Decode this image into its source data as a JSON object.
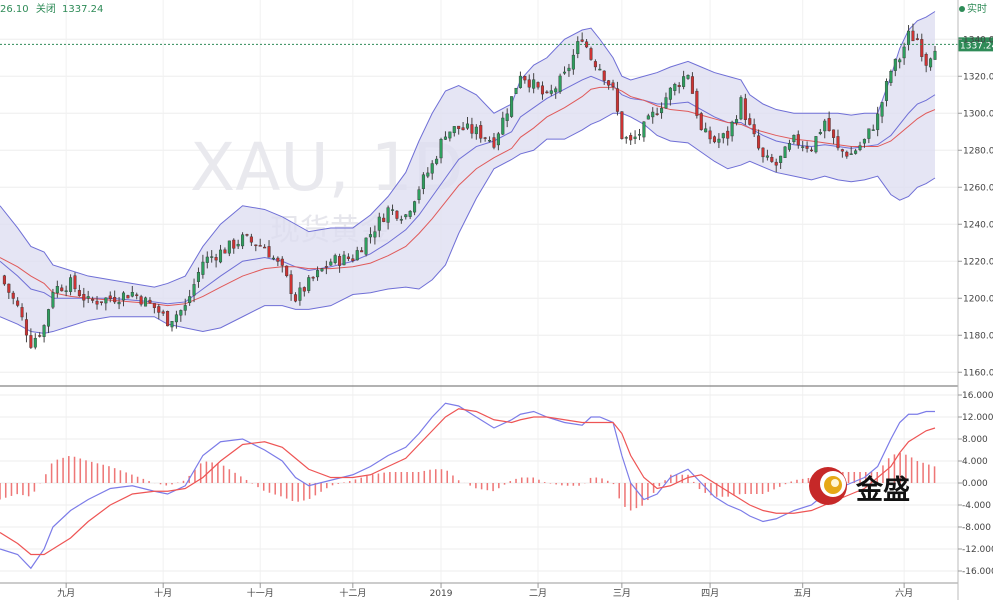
{
  "header": {
    "partial_value": "26.10",
    "close_label": "关闭",
    "close_value": "1337.24",
    "live_label": "实时"
  },
  "watermark": {
    "symbol": "XAU, 1D",
    "sub": "现货黄金"
  },
  "logo": {
    "text": "金盛"
  },
  "colors": {
    "up": "#2e9e5e",
    "down": "#cc3333",
    "band_fill": "#dcdcf0",
    "band_line": "#6f6fd6",
    "ma": "#e05a5a",
    "macd": "#7c7ce8",
    "signal": "#ee5555",
    "hist": "#ee7777",
    "last_price": "#2e8b57"
  },
  "chart_data": [
    {
      "type": "candlestick",
      "title": "",
      "symbol": "XAU",
      "timeframe": "1D",
      "last_price": 1337.24,
      "ylim": [
        1150,
        1350
      ],
      "y_ticks": [
        1160,
        1180,
        1200,
        1220,
        1240,
        1260,
        1280,
        1300,
        1320,
        1340
      ],
      "y_tick_labels": [
        "1160.00",
        "1180.00",
        "1200.00",
        "1220.00",
        "1240.00",
        "1260.00",
        "1280.00",
        "1300.00",
        "1320.00",
        "1340.00"
      ],
      "x_ticks": [
        {
          "label": "九月",
          "x": 15
        },
        {
          "label": "十月",
          "x": 37
        },
        {
          "label": "十一月",
          "x": 59
        },
        {
          "label": "十二月",
          "x": 80
        },
        {
          "label": "2019",
          "x": 100
        },
        {
          "label": "二月",
          "x": 122
        },
        {
          "label": "三月",
          "x": 141
        },
        {
          "label": "四月",
          "x": 161
        },
        {
          "label": "五月",
          "x": 182
        },
        {
          "label": "六月",
          "x": 205
        }
      ],
      "indicators": [
        "Bollinger Bands (upper, middle, lower)",
        "Moving average"
      ],
      "x": [
        0,
        4,
        7,
        10,
        12,
        16,
        20,
        25,
        30,
        35,
        38,
        42,
        46,
        50,
        55,
        60,
        64,
        67,
        70,
        75,
        80,
        84,
        88,
        92,
        95,
        98,
        101,
        104,
        108,
        112,
        116,
        118,
        121,
        124,
        128,
        132,
        134,
        136,
        139,
        141,
        143,
        146,
        149,
        152,
        156,
        159,
        162,
        165,
        168,
        170,
        173,
        176,
        180,
        184,
        187,
        190,
        193,
        196,
        199,
        202,
        204,
        206,
        208,
        210,
        212
      ],
      "close": [
        1212,
        1195,
        1176,
        1185,
        1205,
        1208,
        1198,
        1200,
        1203,
        1195,
        1188,
        1195,
        1220,
        1225,
        1232,
        1228,
        1215,
        1200,
        1208,
        1220,
        1222,
        1235,
        1248,
        1245,
        1260,
        1272,
        1290,
        1292,
        1290,
        1285,
        1308,
        1322,
        1315,
        1308,
        1320,
        1342,
        1330,
        1325,
        1312,
        1288,
        1284,
        1292,
        1302,
        1312,
        1322,
        1290,
        1285,
        1288,
        1306,
        1292,
        1275,
        1272,
        1285,
        1282,
        1296,
        1280,
        1278,
        1285,
        1298,
        1323,
        1330,
        1342,
        1340,
        1328,
        1337
      ],
      "bollinger_upper": [
        1250,
        1238,
        1228,
        1225,
        1218,
        1215,
        1212,
        1210,
        1208,
        1206,
        1208,
        1212,
        1228,
        1240,
        1250,
        1248,
        1244,
        1240,
        1236,
        1238,
        1238,
        1245,
        1255,
        1268,
        1285,
        1300,
        1312,
        1315,
        1310,
        1300,
        1305,
        1318,
        1326,
        1330,
        1340,
        1345,
        1346,
        1340,
        1330,
        1320,
        1318,
        1320,
        1322,
        1325,
        1328,
        1325,
        1322,
        1320,
        1318,
        1310,
        1305,
        1302,
        1300,
        1300,
        1300,
        1300,
        1299,
        1300,
        1300,
        1320,
        1335,
        1345,
        1350,
        1352,
        1355
      ],
      "bollinger_middle": [
        1220,
        1212,
        1205,
        1203,
        1200,
        1200,
        1200,
        1200,
        1199,
        1198,
        1197,
        1198,
        1205,
        1212,
        1220,
        1222,
        1220,
        1217,
        1215,
        1217,
        1220,
        1224,
        1230,
        1237,
        1245,
        1255,
        1265,
        1275,
        1282,
        1285,
        1290,
        1298,
        1303,
        1308,
        1313,
        1318,
        1320,
        1318,
        1315,
        1310,
        1308,
        1307,
        1305,
        1305,
        1306,
        1302,
        1298,
        1295,
        1295,
        1292,
        1288,
        1285,
        1283,
        1282,
        1283,
        1282,
        1281,
        1282,
        1283,
        1288,
        1294,
        1300,
        1305,
        1307,
        1310
      ],
      "bollinger_lower": [
        1190,
        1186,
        1182,
        1181,
        1182,
        1185,
        1188,
        1190,
        1190,
        1190,
        1186,
        1184,
        1182,
        1184,
        1190,
        1196,
        1196,
        1194,
        1194,
        1196,
        1202,
        1203,
        1205,
        1206,
        1205,
        1210,
        1218,
        1235,
        1254,
        1270,
        1275,
        1278,
        1280,
        1286,
        1286,
        1291,
        1294,
        1296,
        1300,
        1300,
        1298,
        1294,
        1288,
        1285,
        1284,
        1279,
        1274,
        1270,
        1272,
        1274,
        1271,
        1268,
        1266,
        1264,
        1266,
        1264,
        1263,
        1264,
        1266,
        1256,
        1253,
        1255,
        1260,
        1262,
        1265
      ],
      "ma": [
        1222,
        1217,
        1212,
        1208,
        1203,
        1201,
        1200,
        1199,
        1198,
        1197,
        1196,
        1197,
        1201,
        1206,
        1212,
        1216,
        1217,
        1217,
        1216,
        1216,
        1217,
        1219,
        1223,
        1228,
        1235,
        1243,
        1252,
        1261,
        1270,
        1276,
        1281,
        1287,
        1292,
        1298,
        1303,
        1309,
        1313,
        1314,
        1314,
        1312,
        1309,
        1307,
        1304,
        1302,
        1301,
        1299,
        1297,
        1295,
        1294,
        1292,
        1290,
        1288,
        1286,
        1285,
        1284,
        1283,
        1282,
        1282,
        1282,
        1285,
        1289,
        1293,
        1297,
        1300,
        1302
      ]
    },
    {
      "type": "line",
      "title": "",
      "indicator": "MACD",
      "ylim": [
        -17,
        17
      ],
      "y_ticks": [
        -16,
        -12,
        -8,
        -4,
        0,
        4,
        8,
        12,
        16
      ],
      "y_tick_labels": [
        "-16.000",
        "-12.000",
        "-8.000",
        "-4.000",
        "0.000",
        "4.000",
        "8.000",
        "12.000",
        "16.000"
      ],
      "x": [
        0,
        4,
        7,
        10,
        12,
        16,
        20,
        25,
        30,
        35,
        38,
        42,
        46,
        50,
        55,
        60,
        64,
        67,
        70,
        75,
        80,
        84,
        88,
        92,
        95,
        98,
        101,
        104,
        108,
        112,
        116,
        118,
        121,
        124,
        128,
        132,
        134,
        136,
        139,
        141,
        143,
        146,
        149,
        152,
        156,
        159,
        162,
        165,
        168,
        170,
        173,
        176,
        180,
        184,
        187,
        190,
        193,
        196,
        199,
        202,
        204,
        206,
        208,
        210,
        212
      ],
      "series": [
        {
          "name": "",
          "values": [
            -12,
            -13,
            -15.5,
            -12,
            -8,
            -5,
            -3,
            -1,
            -0.5,
            -1.5,
            -2,
            -0.5,
            5,
            7.5,
            8,
            6,
            4,
            1,
            -0.5,
            0.5,
            1.5,
            3,
            5,
            6.5,
            9,
            12,
            14.5,
            14,
            12,
            10,
            11.5,
            12.5,
            13,
            12,
            11,
            10.5,
            12,
            12,
            11,
            5,
            0,
            -3,
            -2,
            1,
            2.5,
            0,
            -2.5,
            -4,
            -5,
            -6,
            -7,
            -6.5,
            -5,
            -4,
            -2,
            -1,
            0,
            1,
            3,
            8,
            11,
            12.5,
            12.5,
            13,
            13
          ]
        },
        {
          "name": "",
          "values": [
            -9,
            -11,
            -13,
            -13,
            -12,
            -10,
            -7,
            -4,
            -2,
            -1.5,
            -1.5,
            -1,
            1,
            4,
            7,
            7.5,
            6.5,
            4.5,
            2.5,
            1,
            1,
            1.5,
            3,
            4.5,
            7,
            9.5,
            12,
            13.5,
            13,
            11.5,
            11,
            11.5,
            12,
            12,
            11.5,
            11,
            11,
            11,
            11,
            9,
            5,
            1,
            -1,
            -0.5,
            1,
            1.5,
            0,
            -1.5,
            -3,
            -4,
            -5,
            -5.5,
            -5.5,
            -5,
            -4,
            -3,
            -2,
            -1,
            1,
            3,
            5.5,
            7.5,
            8.5,
            9.5,
            10
          ]
        }
      ],
      "histogram": [
        -3,
        -2,
        -2.5,
        1,
        4,
        5,
        4,
        3,
        1.5,
        0,
        -0.5,
        0.5,
        4,
        3.5,
        1,
        -1.5,
        -2.5,
        -3.5,
        -3,
        -0.5,
        0.5,
        1.5,
        2,
        2,
        2,
        2.5,
        2.5,
        0.5,
        -1,
        -1.5,
        0.5,
        1,
        1,
        0,
        -0.5,
        -0.5,
        1,
        1,
        0,
        -4,
        -5,
        -4,
        -1,
        1.5,
        1.5,
        -1.5,
        -2.5,
        -2.5,
        -2,
        -2,
        -2,
        -1,
        0.5,
        1,
        2,
        2,
        2,
        2,
        2,
        5,
        5.5,
        5,
        4,
        3.5,
        3
      ]
    }
  ]
}
